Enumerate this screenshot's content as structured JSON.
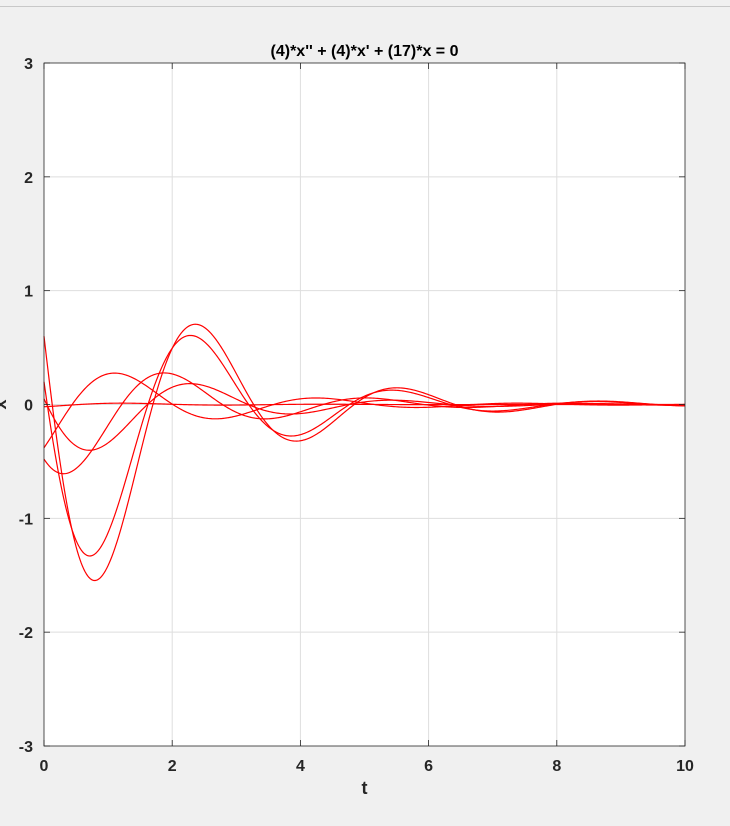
{
  "chart_data": {
    "type": "line",
    "title": "(4)*x'' + (4)*x' + (17)*x = 0",
    "xlabel": "t",
    "ylabel": "x",
    "xlim": [
      0,
      10
    ],
    "ylim": [
      -3,
      3
    ],
    "xticks": [
      "0",
      "2",
      "4",
      "6",
      "8",
      "10"
    ],
    "yticks": [
      "-3",
      "-2",
      "-1",
      "0",
      "1",
      "2",
      "3"
    ],
    "grid": true,
    "legend": "none",
    "line_color": "#ff0000",
    "equation": {
      "a": 4,
      "b": 4,
      "c": 17,
      "decay_rate": 0.5,
      "angular_frequency": 2
    },
    "series": [
      {
        "x0": 0.6,
        "v0": -4.88
      },
      {
        "x0": 0.2,
        "v0": -4.0
      },
      {
        "x0": -0.48,
        "v0": -0.86
      },
      {
        "x0": -0.38,
        "v0": 0.82
      },
      {
        "x0": 0.05,
        "v0": -1.2
      },
      {
        "x0": -0.02,
        "v0": 0.03
      }
    ]
  }
}
